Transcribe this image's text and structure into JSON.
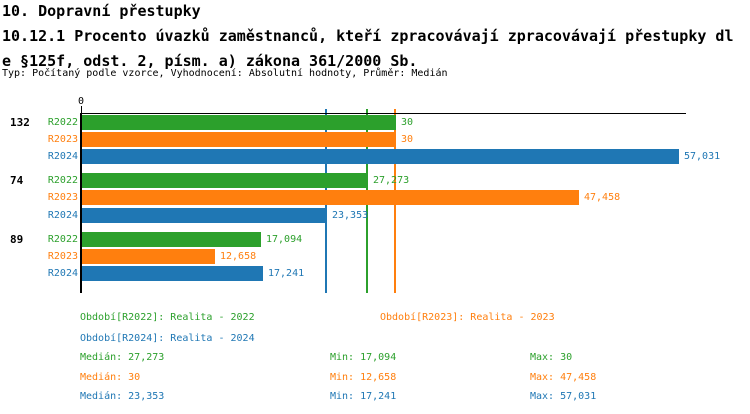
{
  "header": {
    "section_title": "10. Dopravní přestupky",
    "indicator_title_lines": [
      "10.12.1 Procento úvazků zaměstnanců, kteří zpracovávají zpracovávají přestupky dl",
      "e §125f, odst. 2, písm. a) zákona 361/2000 Sb."
    ],
    "meta": "Typ: Počítaný podle vzorce, Vyhodnocení: Absolutní hodnoty, Průměr: Medián"
  },
  "axis": {
    "zero_label": "0"
  },
  "chart_data": {
    "type": "bar",
    "orientation": "horizontal",
    "title": "10.12.1 Procento úvazků zaměstnanců, kteří zpracovávají zpracovávají přestupky dle §125f, odst. 2, písm. a) zákona 361/2000 Sb.",
    "value_note": "decimal comma formatting (Czech locale)",
    "x_axis": {
      "min": 0,
      "zero_label": "0",
      "max_extent": 57.031,
      "gridlines_at_medians": true
    },
    "legend_position": "bottom",
    "series": [
      {
        "key": "R2022",
        "name": "Realita - 2022",
        "color": "#2ca02c",
        "median": 27.273,
        "min": 17.094,
        "max": 30
      },
      {
        "key": "R2023",
        "name": "Realita - 2023",
        "color": "#ff7f0e",
        "median": 30,
        "min": 12.658,
        "max": 47.458
      },
      {
        "key": "R2024",
        "name": "Realita - 2024",
        "color": "#1f77b4",
        "median": 23.353,
        "min": 17.241,
        "max": 57.031
      }
    ],
    "groups": [
      {
        "label": "132",
        "bars": [
          {
            "series": "R2022",
            "value": 30,
            "label": "30"
          },
          {
            "series": "R2023",
            "value": 30,
            "label": "30"
          },
          {
            "series": "R2024",
            "value": 57.031,
            "label": "57,031"
          }
        ]
      },
      {
        "label": "74",
        "bars": [
          {
            "series": "R2022",
            "value": 27.273,
            "label": "27,273"
          },
          {
            "series": "R2023",
            "value": 47.458,
            "label": "47,458"
          },
          {
            "series": "R2024",
            "value": 23.353,
            "label": "23,353"
          }
        ]
      },
      {
        "label": "89",
        "bars": [
          {
            "series": "R2022",
            "value": 17.094,
            "label": "17,094"
          },
          {
            "series": "R2023",
            "value": 12.658,
            "label": "12,658"
          },
          {
            "series": "R2024",
            "value": 17.241,
            "label": "17,241"
          }
        ]
      }
    ]
  },
  "legend": {
    "items": [
      {
        "text": "Období[R2022]: Realita - 2022",
        "color": "#2ca02c"
      },
      {
        "text": "Období[R2023]: Realita - 2023",
        "color": "#ff7f0e"
      },
      {
        "text": "Období[R2024]: Realita - 2024",
        "color": "#1f77b4"
      }
    ]
  },
  "stats": {
    "rows": [
      {
        "color": "#2ca02c",
        "median": "Medián: 27,273",
        "min": "Min: 17,094",
        "max": "Max: 30"
      },
      {
        "color": "#ff7f0e",
        "median": "Medián: 30",
        "min": "Min: 12,658",
        "max": "Max: 47,458"
      },
      {
        "color": "#1f77b4",
        "median": "Medián: 23,353",
        "min": "Min: 17,241",
        "max": "Max: 57,031"
      }
    ]
  }
}
